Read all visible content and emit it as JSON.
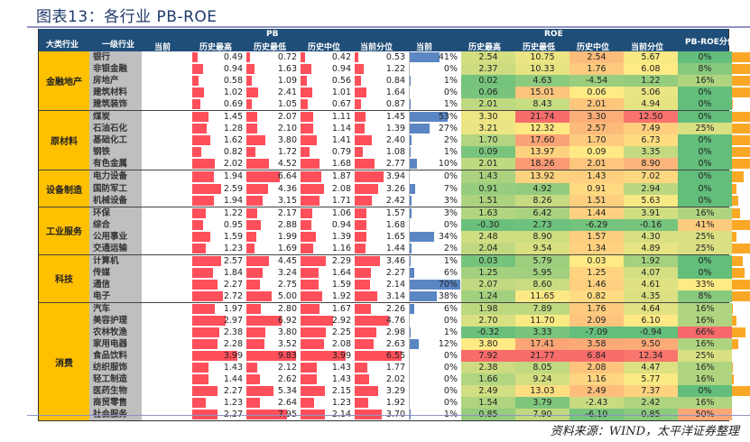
{
  "title": "图表13：各行业 PB-ROE",
  "source": "资料来源：WIND，太平洋证券整理",
  "header": {
    "major": "大类行业",
    "level1": "一级行业",
    "pb_group": "PB",
    "roe_group": "ROE",
    "cols": [
      "当前",
      "历史最高",
      "历史最低",
      "历史中位",
      "当前分位"
    ],
    "pbroe": "PB-ROE分位"
  },
  "colors": {
    "header": "#1f4e79",
    "category": "#ffc000",
    "industry": "#bfbfbf",
    "pb_bar": "#ff4f5a",
    "pct_bar": "#5b86c4",
    "pbroe_bar": "#f9a825"
  },
  "groups": [
    {
      "name": "金融地产",
      "rows": [
        {
          "ind": "银行",
          "pb": [
            "0.49",
            "0.72",
            "0.42",
            "0.53"
          ],
          "pb_pct": "41%",
          "roe": [
            "2.54",
            "10.75",
            "2.54",
            "5.67"
          ],
          "roe_pct": "0%",
          "pbroe": "62.17"
        },
        {
          "ind": "非银金融",
          "pb": [
            "0.94",
            "1.63",
            "0.94",
            "1.22"
          ],
          "pb_pct": "0%",
          "roe": [
            "2.37",
            "10.33",
            "1.76",
            "6.08"
          ],
          "roe_pct": "8%",
          "pbroe": "71.66"
        },
        {
          "ind": "房地产",
          "pb": [
            "0.58",
            "1.09",
            "0.56",
            "0.84"
          ],
          "pb_pct": "1%",
          "roe": [
            "0.02",
            "4.63",
            "-4.54",
            "1.22"
          ],
          "roe_pct": "16%",
          "pbroe": "94.29"
        },
        {
          "ind": "建筑材料",
          "pb": [
            "1.02",
            "2.41",
            "1.01",
            "1.64"
          ],
          "pb_pct": "0%",
          "roe": [
            "0.06",
            "15.01",
            "0.06",
            "5.06"
          ],
          "roe_pct": "0%",
          "pbroe": "64.24"
        },
        {
          "ind": "建筑装饰",
          "pb": [
            "0.69",
            "1.05",
            "0.67",
            "0.87"
          ],
          "pb_pct": "1%",
          "roe": [
            "2.01",
            "8.43",
            "2.01",
            "4.94"
          ],
          "roe_pct": "0%",
          "pbroe": "1.51"
        }
      ]
    },
    {
      "name": "原材料",
      "rows": [
        {
          "ind": "煤炭",
          "pb": [
            "1.45",
            "2.07",
            "1.11",
            "1.45"
          ],
          "pb_pct": "53%",
          "roe": [
            "3.30",
            "21.74",
            "3.30",
            "12.50"
          ],
          "roe_pct": "0%",
          "pbroe": "94.36"
        },
        {
          "ind": "石油石化",
          "pb": [
            "1.28",
            "2.10",
            "1.14",
            "1.39"
          ],
          "pb_pct": "27%",
          "roe": [
            "3.21",
            "12.32",
            "2.57",
            "7.49"
          ],
          "roe_pct": "25%",
          "pbroe": "79.50"
        },
        {
          "ind": "基础化工",
          "pb": [
            "1.62",
            "3.80",
            "1.41",
            "2.40"
          ],
          "pb_pct": "2%",
          "roe": [
            "1.70",
            "17.60",
            "1.70",
            "6.73"
          ],
          "roe_pct": "0%",
          "pbroe": "69.81"
        },
        {
          "ind": "钢铁",
          "pb": [
            "0.82",
            "1.72",
            "0.79",
            "1.08"
          ],
          "pb_pct": "1%",
          "roe": [
            "0.09",
            "13.97",
            "0.09",
            "3.35"
          ],
          "roe_pct": "0%",
          "pbroe": "53.65"
        },
        {
          "ind": "有色金属",
          "pb": [
            "2.02",
            "4.52",
            "1.68",
            "2.77"
          ],
          "pb_pct": "10%",
          "roe": [
            "2.01",
            "18.26",
            "2.01",
            "8.90"
          ],
          "roe_pct": "0%",
          "pbroe": "58.94"
        }
      ]
    },
    {
      "name": "设备制造",
      "rows": [
        {
          "ind": "电力设备",
          "pb": [
            "1.94",
            "6.64",
            "1.87",
            "3.94"
          ],
          "pb_pct": "0%",
          "roe": [
            "1.43",
            "13.92",
            "1.43",
            "7.02"
          ],
          "roe_pct": "0%",
          "pbroe": "24.35"
        },
        {
          "ind": "国防军工",
          "pb": [
            "2.59",
            "4.36",
            "2.08",
            "3.26"
          ],
          "pb_pct": "7%",
          "roe": [
            "0.91",
            "4.92",
            "0.91",
            "2.94"
          ],
          "roe_pct": "0%",
          "pbroe": "9.63"
        },
        {
          "ind": "机械设备",
          "pb": [
            "1.94",
            "3.15",
            "1.71",
            "2.42"
          ],
          "pb_pct": "3%",
          "roe": [
            "1.51",
            "8.26",
            "1.51",
            "5.63"
          ],
          "roe_pct": "0%",
          "pbroe": "13.62"
        }
      ]
    },
    {
      "name": "工业服务",
      "rows": [
        {
          "ind": "环保",
          "pb": [
            "1.22",
            "2.17",
            "1.06",
            "1.57"
          ],
          "pb_pct": "3%",
          "roe": [
            "1.63",
            "6.42",
            "1.44",
            "3.91"
          ],
          "roe_pct": "16%",
          "pbroe": "18.09"
        },
        {
          "ind": "综合",
          "pb": [
            "0.95",
            "2.88",
            "0.94",
            "1.68"
          ],
          "pb_pct": "0%",
          "roe": [
            "-0.30",
            "2.73",
            "-6.29",
            "-0.16"
          ],
          "roe_pct": "41%",
          "pbroe": "39.96"
        },
        {
          "ind": "公用事业",
          "pb": [
            "1.59",
            "1.99",
            "1.39",
            "1.65"
          ],
          "pb_pct": "34%",
          "roe": [
            "2.48",
            "8.90",
            "1.57",
            "4.30"
          ],
          "roe_pct": "25%",
          "pbroe": "9.08"
        },
        {
          "ind": "交通运输",
          "pb": [
            "1.23",
            "1.69",
            "1.16",
            "1.44"
          ],
          "pb_pct": "2%",
          "roe": [
            "2.04",
            "9.54",
            "1.34",
            "4.89"
          ],
          "roe_pct": "25%",
          "pbroe": "79.09"
        }
      ]
    },
    {
      "name": "科技",
      "rows": [
        {
          "ind": "计算机",
          "pb": [
            "2.57",
            "4.45",
            "2.29",
            "3.46"
          ],
          "pb_pct": "1%",
          "roe": [
            "0.03",
            "5.79",
            "0.03",
            "1.92"
          ],
          "roe_pct": "0%",
          "pbroe": "23.52"
        },
        {
          "ind": "传媒",
          "pb": [
            "1.84",
            "3.24",
            "1.64",
            "2.27"
          ],
          "pb_pct": "6%",
          "roe": [
            "1.25",
            "5.95",
            "1.25",
            "4.07"
          ],
          "roe_pct": "0%",
          "pbroe": "26.55"
        },
        {
          "ind": "通信",
          "pb": [
            "2.27",
            "2.75",
            "1.59",
            "2.14"
          ],
          "pb_pct": "70%",
          "roe": [
            "2.07",
            "8.60",
            "1.46",
            "4.61"
          ],
          "roe_pct": "33%",
          "pbroe": "38.93"
        },
        {
          "ind": "电子",
          "pb": [
            "2.72",
            "5.00",
            "1.92",
            "3.14"
          ],
          "pb_pct": "38%",
          "roe": [
            "1.24",
            "11.65",
            "0.82",
            "4.35"
          ],
          "roe_pct": "8%",
          "pbroe": "84.87"
        }
      ]
    },
    {
      "name": "消费",
      "rows": [
        {
          "ind": "汽车",
          "pb": [
            "1.97",
            "2.80",
            "1.67",
            "2.26"
          ],
          "pb_pct": "6%",
          "roe": [
            "1.98",
            "7.89",
            "1.76",
            "4.64"
          ],
          "roe_pct": "16%",
          "pbroe": "2.06"
        },
        {
          "ind": "美容护理",
          "pb": [
            "2.97",
            "6.92",
            "2.92",
            "4.76"
          ],
          "pb_pct": "0%",
          "roe": [
            "2.70",
            "11.70",
            "2.09",
            "6.10"
          ],
          "roe_pct": "16%",
          "pbroe": "9.22"
        },
        {
          "ind": "农林牧渔",
          "pb": [
            "2.38",
            "3.80",
            "2.25",
            "2.98"
          ],
          "pb_pct": "1%",
          "roe": [
            "-0.32",
            "3.33",
            "-7.09",
            "-0.94"
          ],
          "roe_pct": "66%",
          "pbroe": "28.20"
        },
        {
          "ind": "家用电器",
          "pb": [
            "2.28",
            "3.52",
            "2.08",
            "2.63"
          ],
          "pb_pct": "12%",
          "roe": [
            "3.80",
            "17.41",
            "3.58",
            "9.50"
          ],
          "roe_pct": "16%",
          "pbroe": "13.20"
        },
        {
          "ind": "食品饮料",
          "pb": [
            "3.99",
            "9.83",
            "3.99",
            "6.55"
          ],
          "pb_pct": "0%",
          "roe": [
            "7.92",
            "21.77",
            "6.84",
            "12.34"
          ],
          "roe_pct": "25%",
          "pbroe": "0.00"
        },
        {
          "ind": "纺织服饰",
          "pb": [
            "1.43",
            "2.12",
            "1.43",
            "1.77"
          ],
          "pb_pct": "0%",
          "roe": [
            "2.38",
            "8.05",
            "2.08",
            "4.47"
          ],
          "roe_pct": "16%",
          "pbroe": "0.28"
        },
        {
          "ind": "轻工制造",
          "pb": [
            "1.44",
            "2.62",
            "1.43",
            "2.02"
          ],
          "pb_pct": "0%",
          "roe": [
            "1.66",
            "9.24",
            "1.16",
            "5.77"
          ],
          "roe_pct": "16%",
          "pbroe": "3.03"
        },
        {
          "ind": "医药生物",
          "pb": [
            "2.27",
            "5.34",
            "2.15",
            "3.29"
          ],
          "pb_pct": "0%",
          "roe": [
            "2.49",
            "13.03",
            "2.49",
            "7.37"
          ],
          "roe_pct": "0%",
          "pbroe": "49.52"
        },
        {
          "ind": "商贸零售",
          "pb": [
            "1.23",
            "2.64",
            "1.23",
            "1.92"
          ],
          "pb_pct": "0%",
          "roe": [
            "1.54",
            "3.79",
            "-2.43",
            "2.42"
          ],
          "roe_pct": "16%",
          "pbroe": "0.00"
        },
        {
          "ind": "社会服务",
          "pb": [
            "2.27",
            "7.95",
            "2.14",
            "3.70"
          ],
          "pb_pct": "1%",
          "roe": [
            "0.85",
            "7.90",
            "-6.10",
            "0.85"
          ],
          "roe_pct": "50%",
          "pbroe": "0.14"
        }
      ]
    }
  ]
}
